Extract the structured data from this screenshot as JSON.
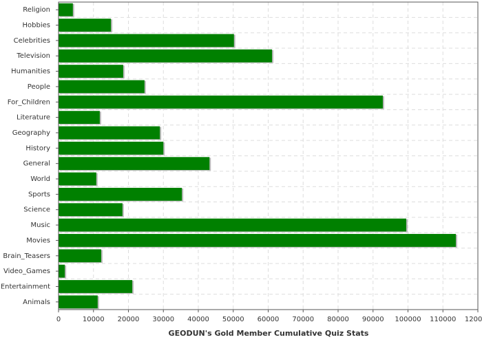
{
  "chart_data": {
    "type": "bar",
    "orientation": "horizontal",
    "title": "GEODUN's Gold Member Cumulative Quiz Stats",
    "categories": [
      "Religion",
      "Hobbies",
      "Celebrities",
      "Television",
      "Humanities",
      "People",
      "For_Children",
      "Literature",
      "Geography",
      "History",
      "General",
      "World",
      "Sports",
      "Science",
      "Music",
      "Movies",
      "Brain_Teasers",
      "Video_Games",
      "Entertainment",
      "Animals"
    ],
    "values": [
      4100,
      15000,
      50200,
      61100,
      18500,
      24600,
      92800,
      11800,
      29000,
      30000,
      43200,
      10800,
      35300,
      18300,
      99500,
      113700,
      12200,
      1800,
      21100,
      11200
    ],
    "color": "#008000",
    "xlim": [
      0,
      120000
    ],
    "xticks": [
      0,
      10000,
      20000,
      30000,
      40000,
      50000,
      60000,
      70000,
      80000,
      90000,
      100000,
      110000,
      120000
    ],
    "grid": true
  }
}
